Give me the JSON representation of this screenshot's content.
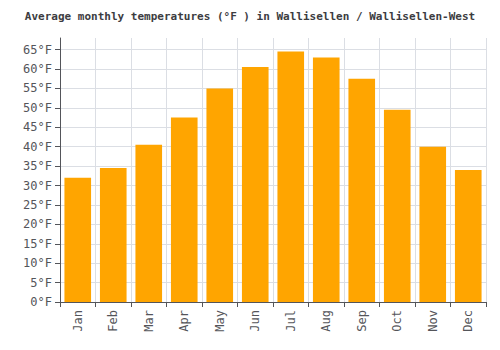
{
  "chart_data": {
    "type": "bar",
    "title": "Average monthly temperatures (°F ) in Wallisellen / Wallisellen-West",
    "categories": [
      "Jan",
      "Feb",
      "Mar",
      "Apr",
      "May",
      "Jun",
      "Jul",
      "Aug",
      "Sep",
      "Oct",
      "Nov",
      "Dec"
    ],
    "values": [
      32,
      34.5,
      40.5,
      47.5,
      55,
      60.5,
      64.5,
      63,
      57.5,
      49.5,
      40,
      34
    ],
    "color": "#FFA500",
    "ylim": [
      0,
      68
    ],
    "yticks": [
      {
        "value": 0,
        "label": "0°F"
      },
      {
        "value": 5,
        "label": "5°F"
      },
      {
        "value": 10,
        "label": "10°F"
      },
      {
        "value": 15,
        "label": "15°F"
      },
      {
        "value": 20,
        "label": "20°F"
      },
      {
        "value": 25,
        "label": "25°F"
      },
      {
        "value": 30,
        "label": "30°F"
      },
      {
        "value": 35,
        "label": "35°F"
      },
      {
        "value": 40,
        "label": "40°F"
      },
      {
        "value": 45,
        "label": "45°F"
      },
      {
        "value": 50,
        "label": "50°F"
      },
      {
        "value": 55,
        "label": "55°F"
      },
      {
        "value": 60,
        "label": "60°F"
      },
      {
        "value": 65,
        "label": "65°F"
      }
    ],
    "grid": true
  }
}
